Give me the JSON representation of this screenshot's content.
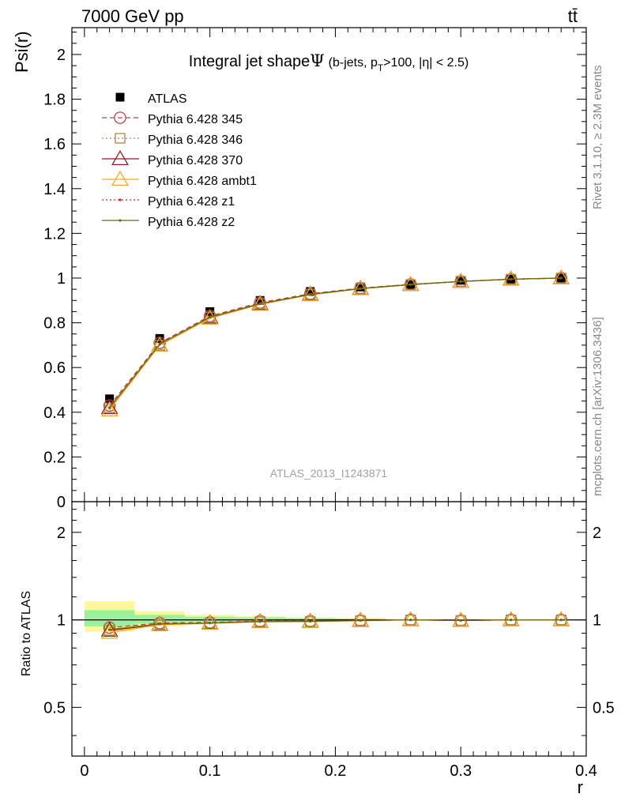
{
  "header": {
    "energy_label": "7000 GeV pp",
    "process_label": "tt̄"
  },
  "side_labels": {
    "rivet": "Rivet 3.1.10, ≥ 2.3M events",
    "mcplots": "mcplots.cern.ch [arXiv:1306.3436]"
  },
  "chart_data": [
    {
      "type": "line",
      "title_main": "Integral jet shape",
      "title_symbol": "Ψ",
      "title_cut_open": "(b-jets, p",
      "title_cut_sub": "T",
      "title_cut_close": ">100, |η| < 2.5)",
      "xlabel": "r",
      "ylabel": "Psi(r)",
      "xlim": [
        -0.01,
        0.4
      ],
      "ylim": [
        0,
        2.12
      ],
      "yticks": [
        0,
        0.2,
        0.4,
        0.6,
        0.8,
        1,
        1.2,
        1.4,
        1.6,
        1.8,
        2
      ],
      "ytick_labels": [
        "0",
        "0.2",
        "0.4",
        "0.6",
        "0.8",
        "1",
        "1.2",
        "1.4",
        "1.6",
        "1.8",
        "2"
      ],
      "legend_position": "top-left",
      "watermark": "ATLAS_2013_I1243871",
      "x": [
        0.02,
        0.06,
        0.1,
        0.14,
        0.18,
        0.22,
        0.26,
        0.3,
        0.34,
        0.38
      ],
      "series": [
        {
          "name": "ATLAS",
          "color": "#000000",
          "style": "data",
          "values": [
            0.46,
            0.73,
            0.85,
            0.9,
            0.94,
            0.96,
            0.97,
            0.99,
            0.995,
            1.0
          ]
        },
        {
          "name": "Pythia 6.428 345",
          "color": "#b5434c",
          "style": "dashed",
          "marker": "circle",
          "values": [
            0.43,
            0.71,
            0.83,
            0.89,
            0.93,
            0.955,
            0.972,
            0.985,
            0.995,
            1.0
          ]
        },
        {
          "name": "Pythia 6.428 346",
          "color": "#a8874a",
          "style": "dotted",
          "marker": "square",
          "values": [
            0.42,
            0.7,
            0.825,
            0.885,
            0.927,
            0.953,
            0.971,
            0.985,
            0.995,
            1.0
          ]
        },
        {
          "name": "Pythia 6.428 370",
          "color": "#8b1a2a",
          "style": "solid",
          "marker": "triangle",
          "values": [
            0.42,
            0.7,
            0.825,
            0.885,
            0.927,
            0.953,
            0.971,
            0.985,
            0.995,
            1.0
          ]
        },
        {
          "name": "Pythia 6.428 ambt1",
          "color": "#f5a623",
          "style": "solid",
          "marker": "triangle",
          "values": [
            0.41,
            0.7,
            0.82,
            0.882,
            0.925,
            0.952,
            0.971,
            0.985,
            0.995,
            1.0
          ]
        },
        {
          "name": "Pythia 6.428 z1",
          "color": "#c0272d",
          "style": "dotted",
          "marker": "dot",
          "values": [
            0.42,
            0.705,
            0.825,
            0.885,
            0.927,
            0.953,
            0.971,
            0.985,
            0.995,
            1.0
          ]
        },
        {
          "name": "Pythia 6.428 z2",
          "color": "#6b6b00",
          "style": "solid",
          "marker": "dot",
          "values": [
            0.42,
            0.705,
            0.825,
            0.885,
            0.927,
            0.953,
            0.971,
            0.985,
            0.995,
            1.0
          ]
        }
      ]
    },
    {
      "type": "line",
      "ylabel": "Ratio to ATLAS",
      "xlabel": "r",
      "xlim": [
        -0.01,
        0.4
      ],
      "ylim": [
        0.34,
        2.55
      ],
      "xticks": [
        0,
        0.1,
        0.2,
        0.3,
        0.4
      ],
      "xtick_labels": [
        "0",
        "0.1",
        "0.2",
        "0.3",
        "0.4"
      ],
      "yticks": [
        0.5,
        1,
        2
      ],
      "ytick_labels": [
        "0.5",
        "1",
        "2"
      ],
      "bands": {
        "x_edges": [
          0,
          0.04,
          0.08,
          0.12,
          0.16,
          0.2,
          0.24,
          0.28,
          0.32,
          0.36,
          0.4
        ],
        "green_color": "#99f299",
        "yellow_color": "#fff89a",
        "green": [
          [
            0.95,
            1.08
          ],
          [
            0.97,
            1.04
          ],
          [
            0.985,
            1.025
          ],
          [
            0.99,
            1.02
          ],
          [
            0.99,
            1.015
          ],
          [
            0.99,
            1.01
          ],
          [
            0.995,
            1.005
          ],
          [
            0.997,
            1.003
          ],
          [
            0.998,
            1.002
          ],
          [
            0.999,
            1.001
          ]
        ],
        "yellow": [
          [
            0.91,
            1.16
          ],
          [
            0.95,
            1.07
          ],
          [
            0.975,
            1.04
          ],
          [
            0.985,
            1.03
          ],
          [
            0.985,
            1.02
          ],
          [
            0.99,
            1.015
          ],
          [
            0.995,
            1.005
          ],
          [
            0.997,
            1.003
          ],
          [
            0.998,
            1.002
          ],
          [
            0.999,
            1.001
          ]
        ]
      },
      "x": [
        0.02,
        0.06,
        0.1,
        0.14,
        0.18,
        0.22,
        0.26,
        0.3,
        0.34,
        0.38
      ],
      "series": [
        {
          "name": "Pythia 6.428 345",
          "values": [
            0.94,
            0.975,
            0.98,
            0.99,
            0.99,
            0.995,
            1.0,
            0.995,
            1.0,
            1.0
          ]
        },
        {
          "name": "Pythia 6.428 346",
          "values": [
            0.92,
            0.965,
            0.975,
            0.987,
            0.988,
            0.995,
            1.0,
            0.995,
            1.0,
            1.0
          ]
        },
        {
          "name": "Pythia 6.428 370",
          "values": [
            0.92,
            0.965,
            0.975,
            0.987,
            0.988,
            0.995,
            1.0,
            0.995,
            1.0,
            1.0
          ]
        },
        {
          "name": "Pythia 6.428 ambt1",
          "values": [
            0.905,
            0.962,
            0.972,
            0.985,
            0.986,
            0.993,
            1.0,
            0.995,
            1.0,
            1.0
          ]
        },
        {
          "name": "Pythia 6.428 z1",
          "values": [
            0.925,
            0.968,
            0.975,
            0.987,
            0.988,
            0.995,
            1.0,
            0.995,
            1.0,
            1.0
          ]
        },
        {
          "name": "Pythia 6.428 z2",
          "values": [
            0.925,
            0.968,
            0.975,
            0.987,
            0.988,
            0.995,
            1.0,
            0.995,
            1.0,
            1.0
          ]
        }
      ]
    }
  ]
}
